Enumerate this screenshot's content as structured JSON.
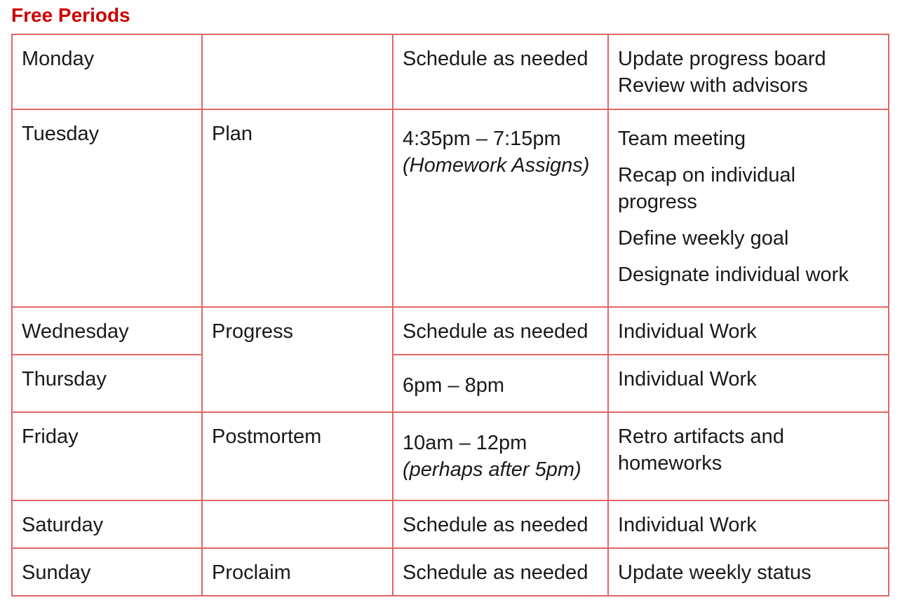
{
  "title": "Free Periods",
  "rows": [
    {
      "day": "Monday",
      "phase": "",
      "time": "Schedule as needed",
      "tasks": [
        "Update progress board",
        "Review with advisors"
      ]
    },
    {
      "day": "Tuesday",
      "phase": "Plan",
      "time": "4:35pm – 7:15pm",
      "time_note": "(Homework Assigns)",
      "tasks": [
        "Team meeting",
        "Recap on individual progress",
        "Define weekly goal",
        "Designate individual work"
      ]
    },
    {
      "day": "Wednesday",
      "phase": "Progress",
      "time": "Schedule as needed",
      "tasks": [
        "Individual Work"
      ]
    },
    {
      "day": "Thursday",
      "time": "6pm – 8pm",
      "tasks": [
        "Individual Work"
      ]
    },
    {
      "day": "Friday",
      "phase": "Postmortem",
      "time": "10am – 12pm",
      "time_note": "(perhaps after 5pm)",
      "tasks": [
        "Retro artifacts and homeworks"
      ]
    },
    {
      "day": "Saturday",
      "phase": "",
      "time": "Schedule as needed",
      "tasks": [
        "Individual Work"
      ]
    },
    {
      "day": "Sunday",
      "phase": "Proclaim",
      "time": "Schedule as needed",
      "tasks": [
        "Update weekly status"
      ]
    }
  ]
}
